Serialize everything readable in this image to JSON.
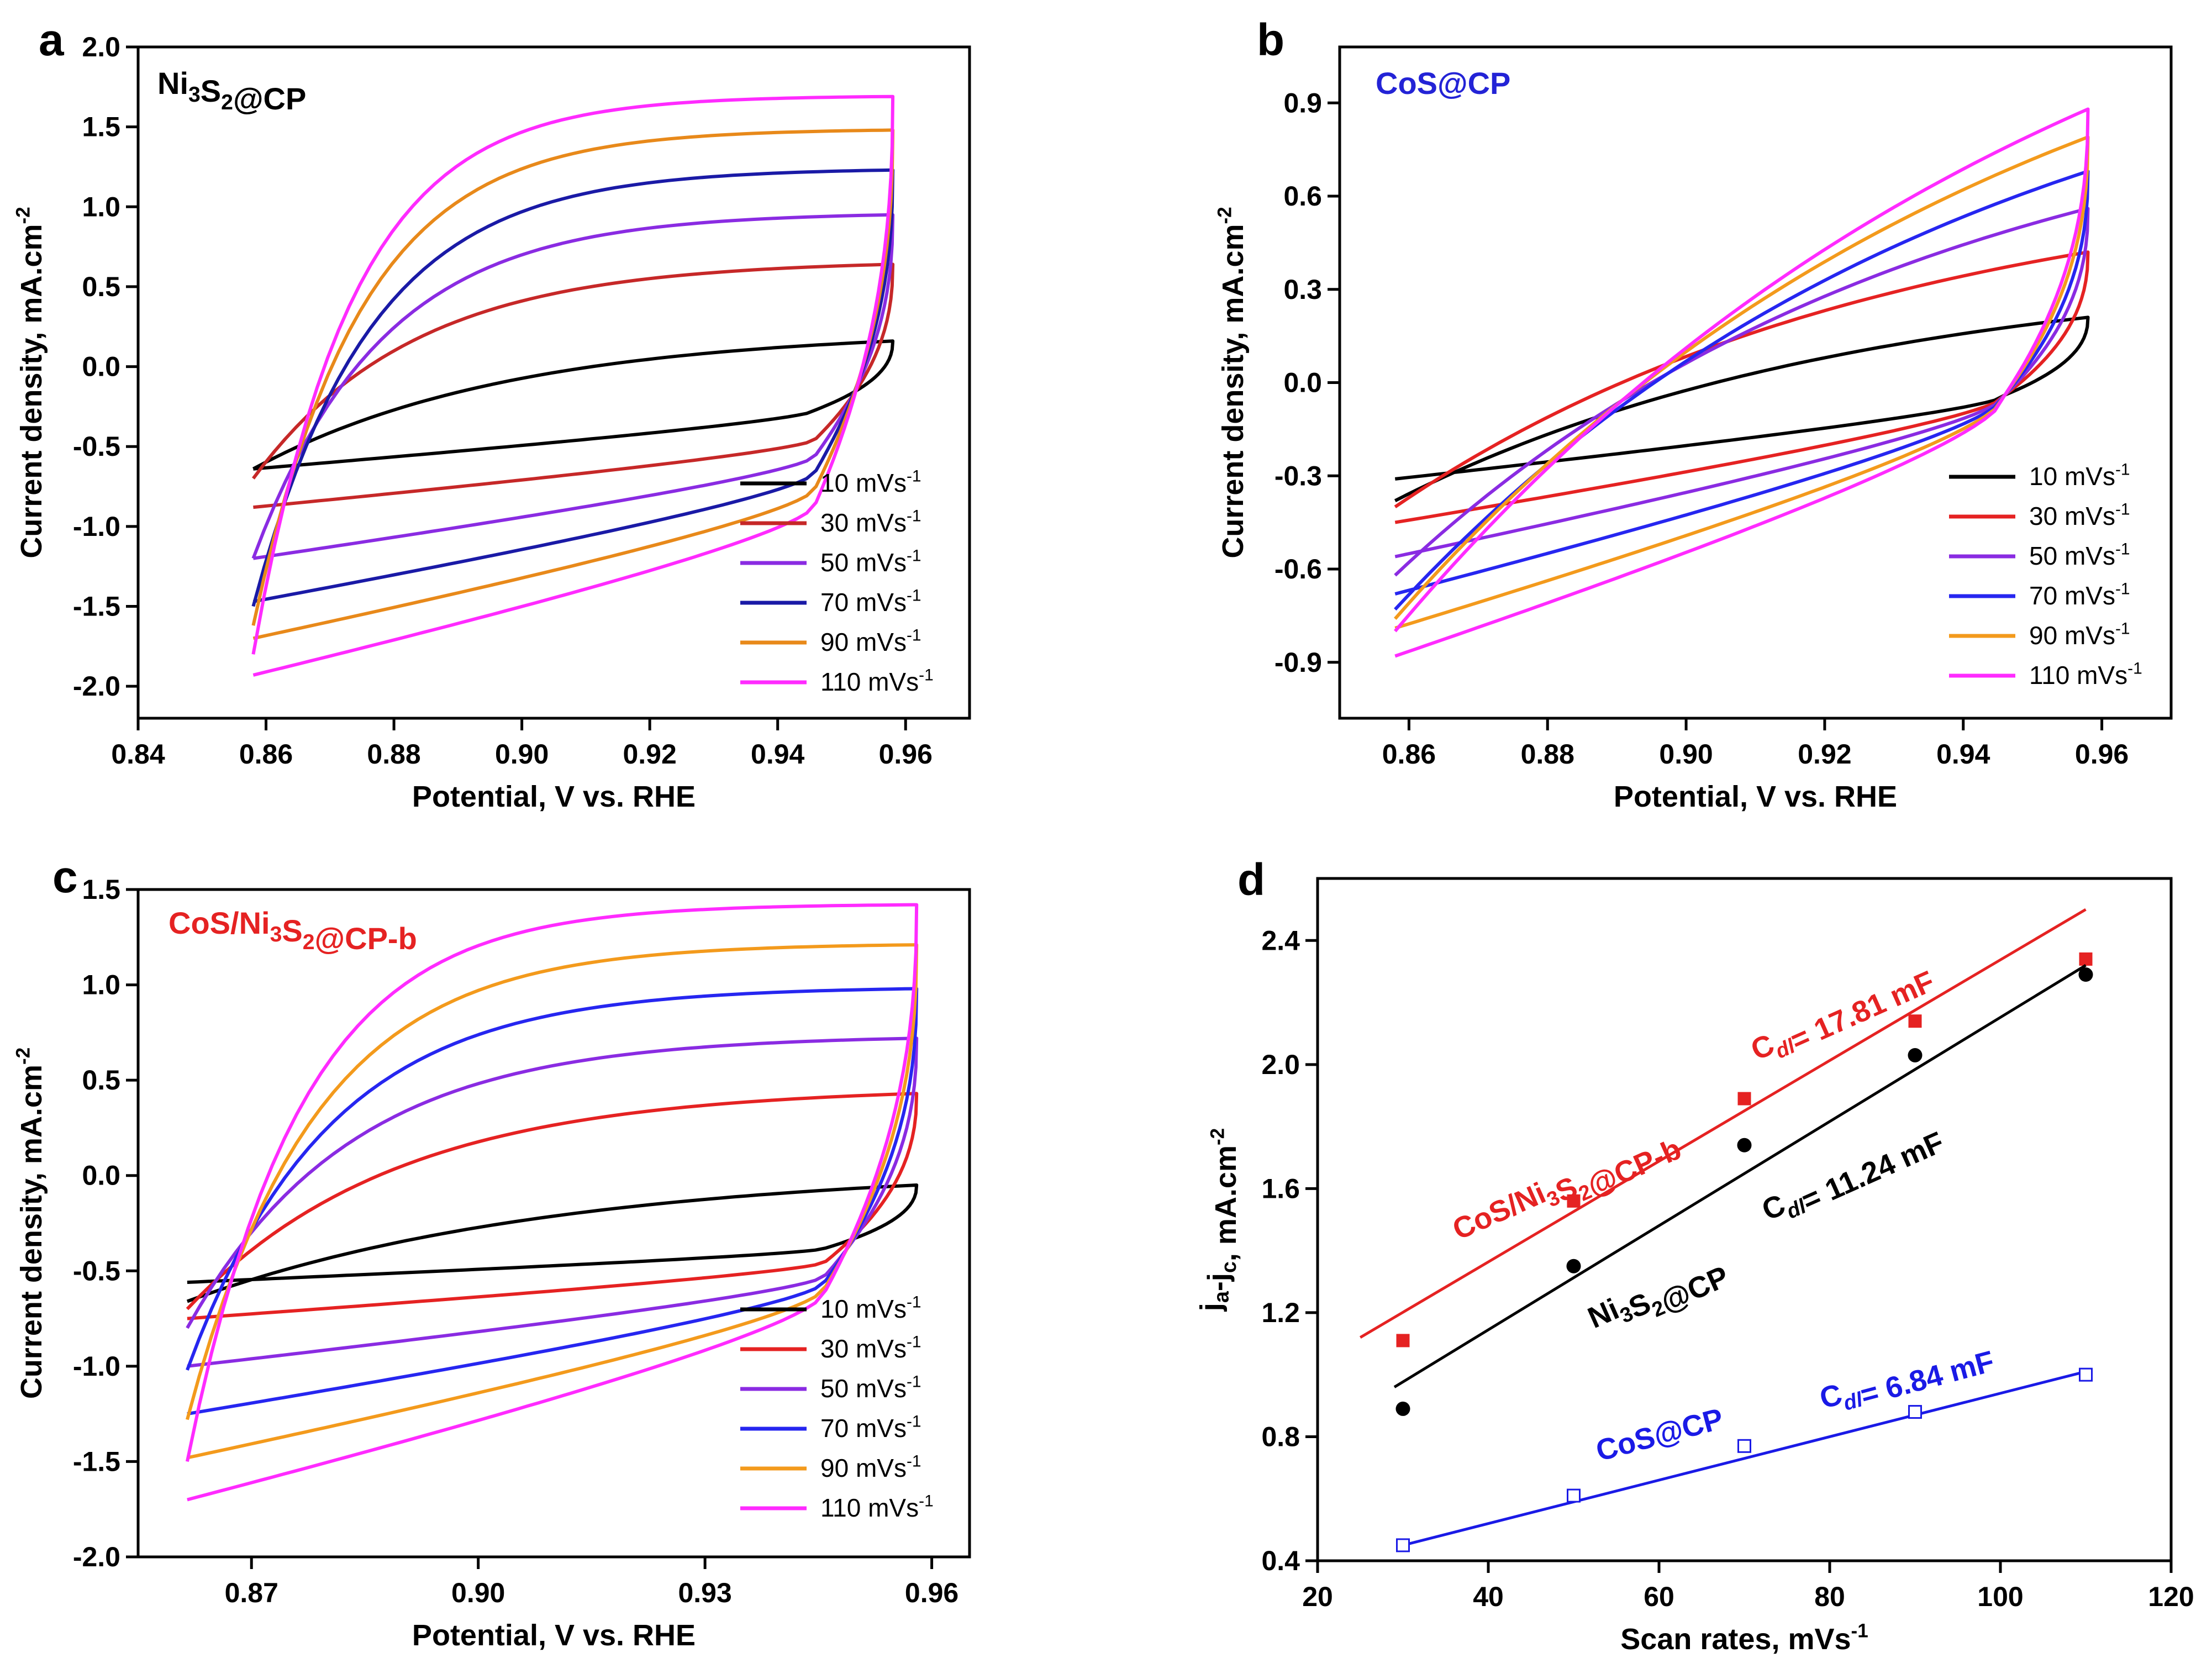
{
  "figure": {
    "panel_letters": [
      "a",
      "b",
      "c",
      "d"
    ]
  },
  "legend_labels": [
    "10 mVs-1",
    "30 mVs-1",
    "50 mVs-1",
    "70 mVs-1",
    "90 mVs-1",
    "110 mVs-1"
  ],
  "legend_colors": [
    "#000000",
    "#c62828",
    "#8a2be2",
    "#1a1aa6",
    "#e8891a",
    "#ff2bff"
  ],
  "chart_data": [
    {
      "panel": "a",
      "type": "line",
      "title": "Ni3S2@CP",
      "title_color": "#000000",
      "xlabel": "Potential, V vs. RHE",
      "ylabel": "Current density, mA.cm-2",
      "xlim": [
        0.84,
        0.97
      ],
      "ylim": [
        -2.2,
        2.0
      ],
      "xticks": [
        0.84,
        0.86,
        0.88,
        0.9,
        0.92,
        0.94,
        0.96
      ],
      "xtick_labels": [
        "0.84",
        "0.86",
        "0.88",
        "0.90",
        "0.92",
        "0.94",
        "0.96"
      ],
      "yticks": [
        -2.0,
        -1.5,
        -1.0,
        -0.5,
        0.0,
        0.5,
        1.0,
        1.5,
        2.0
      ],
      "ytick_labels": [
        "-2.0",
        "-1.5",
        "-1.0",
        "-0.5",
        "0.0",
        "0.5",
        "1.0",
        "1.5",
        "2.0"
      ],
      "cv_curves": {
        "x_start": 0.858,
        "x_end": 0.958,
        "cross_x": 0.943,
        "series": [
          {
            "name": "10 mVs-1",
            "color": "#000000",
            "anodic_end": 0.16,
            "cathodic_start": -0.64,
            "slope": 0.43,
            "cathodic_high": -0.27,
            "anodic_low": -0.64,
            "curv": 0.15
          },
          {
            "name": "30 mVs-1",
            "color": "#c62828",
            "anodic_end": 0.64,
            "cathodic_start": -0.88,
            "slope": 0.6,
            "cathodic_high": -0.45,
            "anodic_low": -0.7,
            "curv": 0.3
          },
          {
            "name": "50 mVs-1",
            "color": "#8a2be2",
            "anodic_end": 0.95,
            "cathodic_start": -1.2,
            "slope": 0.82,
            "cathodic_high": -0.55,
            "anodic_low": -1.2,
            "curv": 0.4
          },
          {
            "name": "70 mVs-1",
            "color": "#1a1aa6",
            "anodic_end": 1.23,
            "cathodic_start": -1.47,
            "slope": 0.98,
            "cathodic_high": -0.65,
            "anodic_low": -1.5,
            "curv": 0.45
          },
          {
            "name": "90 mVs-1",
            "color": "#e8891a",
            "anodic_end": 1.48,
            "cathodic_start": -1.7,
            "slope": 1.15,
            "cathodic_high": -0.75,
            "anodic_low": -1.62,
            "curv": 0.5
          },
          {
            "name": "110 mVs-1",
            "color": "#ff2bff",
            "anodic_end": 1.69,
            "cathodic_start": -1.93,
            "slope": 1.3,
            "cathodic_high": -0.85,
            "anodic_low": -1.8,
            "curv": 0.55
          }
        ]
      }
    },
    {
      "panel": "b",
      "type": "line",
      "title": "CoS@CP",
      "title_color": "#2323d6",
      "xlabel": "Potential, V vs. RHE",
      "ylabel": "Current density, mA.cm-2",
      "xlim": [
        0.85,
        0.97
      ],
      "ylim": [
        -1.08,
        1.08
      ],
      "xticks": [
        0.86,
        0.88,
        0.9,
        0.92,
        0.94,
        0.96
      ],
      "xtick_labels": [
        "0.86",
        "0.88",
        "0.90",
        "0.92",
        "0.94",
        "0.96"
      ],
      "yticks": [
        -0.9,
        -0.6,
        -0.3,
        0.0,
        0.3,
        0.6,
        0.9
      ],
      "ytick_labels": [
        "-0.9",
        "-0.6",
        "-0.3",
        "0.0",
        "0.3",
        "0.6",
        "0.9"
      ],
      "cv_curves": {
        "x_start": 0.858,
        "x_end": 0.958,
        "cross_x": 0.947,
        "series": [
          {
            "name": "10 mVs-1",
            "color": "#000000",
            "anodic_end": 0.21,
            "cathodic_start": -0.31,
            "slope": 0.2,
            "cathodic_high": -0.04,
            "anodic_low": -0.38,
            "curv": 0.05
          },
          {
            "name": "30 mVs-1",
            "color": "#e52222",
            "anodic_end": 0.42,
            "cathodic_start": -0.45,
            "slope": 0.15,
            "cathodic_high": -0.04,
            "anodic_low": -0.4,
            "curv": 0.04
          },
          {
            "name": "50 mVs-1",
            "color": "#8a2be2",
            "anodic_end": 0.56,
            "cathodic_start": -0.56,
            "slope": 0.18,
            "cathodic_high": -0.04,
            "anodic_low": -0.62,
            "curv": 0.03
          },
          {
            "name": "70 mVs-1",
            "color": "#2626f0",
            "anodic_end": 0.68,
            "cathodic_start": -0.68,
            "slope": 0.22,
            "cathodic_high": -0.04,
            "anodic_low": -0.73,
            "curv": 0.02
          },
          {
            "name": "90 mVs-1",
            "color": "#f39a1c",
            "anodic_end": 0.79,
            "cathodic_start": -0.79,
            "slope": 0.28,
            "cathodic_high": -0.04,
            "anodic_low": -0.76,
            "curv": 0.01
          },
          {
            "name": "110 mVs-1",
            "color": "#ff2bff",
            "anodic_end": 0.88,
            "cathodic_start": -0.88,
            "slope": 0.35,
            "cathodic_high": -0.04,
            "anodic_low": -0.8,
            "curv": 0.0
          }
        ]
      }
    },
    {
      "panel": "c",
      "type": "line",
      "title": "CoS/Ni3S2@CP-b",
      "title_color": "#e52222",
      "xlabel": "Potential, V vs. RHE",
      "ylabel": "Current density, mA.cm-2",
      "xlim": [
        0.855,
        0.965
      ],
      "ylim": [
        -2.0,
        1.5
      ],
      "xticks": [
        0.87,
        0.9,
        0.93,
        0.96
      ],
      "xtick_labels": [
        "0.87",
        "0.90",
        "0.93",
        "0.96"
      ],
      "yticks": [
        -2.0,
        -1.5,
        -1.0,
        -0.5,
        0.0,
        0.5,
        1.0,
        1.5
      ],
      "ytick_labels": [
        "-2.0",
        "-1.5",
        "-1.0",
        "-0.5",
        "0.0",
        "0.5",
        "1.0",
        "1.5"
      ],
      "cv_curves": {
        "x_start": 0.8615,
        "x_end": 0.958,
        "cross_x": 0.942,
        "series": [
          {
            "name": "10 mVs-1",
            "color": "#000000",
            "anodic_end": -0.05,
            "cathodic_start": -0.56,
            "slope": 0.18,
            "cathodic_high": -0.38,
            "anodic_low": -0.66,
            "curv": 0.1
          },
          {
            "name": "30 mVs-1",
            "color": "#e52222",
            "anodic_end": 0.43,
            "cathodic_start": -0.75,
            "slope": 0.28,
            "cathodic_high": -0.45,
            "anodic_low": -0.7,
            "curv": 0.25
          },
          {
            "name": "50 mVs-1",
            "color": "#8a2be2",
            "anodic_end": 0.72,
            "cathodic_start": -1.0,
            "slope": 0.48,
            "cathodic_high": -0.52,
            "anodic_low": -0.8,
            "curv": 0.35
          },
          {
            "name": "70 mVs-1",
            "color": "#2626f0",
            "anodic_end": 0.98,
            "cathodic_start": -1.25,
            "slope": 0.7,
            "cathodic_high": -0.55,
            "anodic_low": -1.02,
            "curv": 0.42
          },
          {
            "name": "90 mVs-1",
            "color": "#f39a1c",
            "anodic_end": 1.21,
            "cathodic_start": -1.48,
            "slope": 0.9,
            "cathodic_high": -0.58,
            "anodic_low": -1.28,
            "curv": 0.48
          },
          {
            "name": "110 mVs-1",
            "color": "#ff2bff",
            "anodic_end": 1.42,
            "cathodic_start": -1.7,
            "slope": 1.1,
            "cathodic_high": -0.6,
            "anodic_low": -1.5,
            "curv": 0.55
          }
        ]
      }
    },
    {
      "panel": "d",
      "type": "scatter",
      "xlabel": "Scan rates, mVs-1",
      "ylabel": "ja-jc, mA.cm-2",
      "xlim": [
        20,
        120
      ],
      "ylim": [
        0.4,
        2.6
      ],
      "xticks": [
        20,
        40,
        60,
        80,
        100,
        120
      ],
      "xtick_labels": [
        "20",
        "40",
        "60",
        "80",
        "100",
        "120"
      ],
      "yticks": [
        0.4,
        0.8,
        1.2,
        1.6,
        2.0,
        2.4
      ],
      "ytick_labels": [
        "0.4",
        "0.8",
        "1.2",
        "1.6",
        "2.0",
        "2.4"
      ],
      "series": [
        {
          "name": "CoS/Ni3S2@CP-b",
          "color": "#e52222",
          "marker": "filled-square",
          "x": [
            30,
            50,
            70,
            90,
            110
          ],
          "y": [
            1.11,
            1.56,
            1.89,
            2.14,
            2.34
          ],
          "fit": {
            "x": [
              25,
              110
            ],
            "y": [
              1.12,
              2.5
            ]
          },
          "fit_label": "Cdl= 17.81 mF"
        },
        {
          "name": "Ni3S2@CP",
          "color": "#000000",
          "marker": "filled-circle",
          "x": [
            30,
            50,
            70,
            90,
            110
          ],
          "y": [
            0.89,
            1.35,
            1.74,
            2.03,
            2.29
          ],
          "fit": {
            "x": [
              29,
              110
            ],
            "y": [
              0.96,
              2.32
            ]
          },
          "fit_label": "Cdl= 11.24 mF"
        },
        {
          "name": "CoS@CP",
          "color": "#1a1ae6",
          "marker": "open-square",
          "x": [
            30,
            50,
            70,
            90,
            110
          ],
          "y": [
            0.45,
            0.61,
            0.77,
            0.88,
            1.0
          ],
          "fit": {
            "x": [
              30,
              110
            ],
            "y": [
              0.45,
              1.01
            ]
          },
          "fit_label": "Cdl= 6.84 mF"
        }
      ]
    }
  ]
}
